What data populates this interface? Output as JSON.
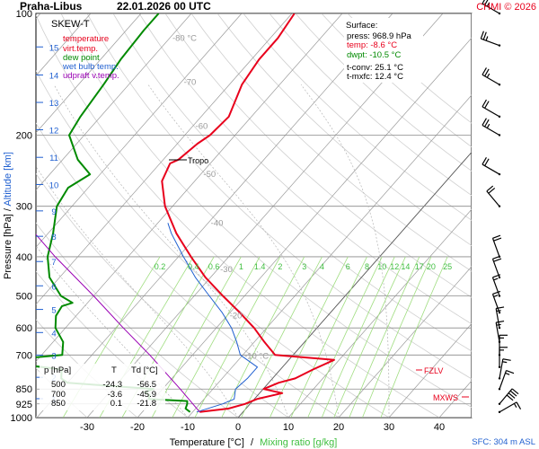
{
  "header": {
    "station": "Praha-Libus",
    "datetime": "22.01.2026 00 UTC",
    "credit": "CHMI © 2026"
  },
  "legend": {
    "title": "SKEW-T",
    "items": [
      {
        "label": "temperature",
        "color": "#e8001c"
      },
      {
        "label": "virt.temp.",
        "color": "#e8001c"
      },
      {
        "label": "dew point",
        "color": "#008a00"
      },
      {
        "label": "wet bulb temp.",
        "color": "#1f5fd0"
      },
      {
        "label": "udpraft v.temp.",
        "color": "#9a00b4"
      }
    ]
  },
  "surface_box": {
    "title": "Surface:",
    "press": "press: 968.9 hPa",
    "temp": "temp: -8.6 °C",
    "dwpt": "dwpt: -10.5 °C",
    "tconv": "t-conv: 25.1 °C",
    "tmxfc": "t-mxfc: 12.4 °C"
  },
  "annotations": {
    "tropo": "Tropo",
    "fzlv": "FZLV",
    "mxws": "MXWS",
    "sfc": "SFC: 304 m ASL"
  },
  "axes": {
    "pressure_label": "Pressure [hPa]",
    "altitude_label": "Altitude [km]",
    "x_label_temp": "Temperature [°C]",
    "x_label_sep": "/",
    "x_label_mix": "Mixing ratio [g/kg]",
    "pressure_ticks": [
      "100",
      "200",
      "300",
      "400",
      "500",
      "600",
      "700",
      "850",
      "925",
      "1000"
    ],
    "temp_ticks": [
      "-30",
      "-20",
      "-10",
      "0",
      "10",
      "20",
      "30",
      "40"
    ],
    "altitude_ticks": [
      "1",
      "2",
      "3",
      "4",
      "5",
      "6",
      "7",
      "8",
      "9",
      "10",
      "11",
      "12",
      "13",
      "14",
      "15"
    ],
    "isotherm_labels": [
      "-80 °C",
      "-70",
      "-60",
      "-50",
      "-40",
      "-30",
      "-20",
      "-10 °C"
    ],
    "mixing_ratio_labels": [
      "0.2",
      "0.4",
      "0.6",
      "1",
      "1.4",
      "2",
      "3",
      "4",
      "6",
      "8",
      "10",
      "12",
      "14",
      "17",
      "20",
      "25"
    ]
  },
  "table": {
    "headers": [
      "p [hPa]",
      "T",
      "Td [°C]"
    ],
    "rows": [
      [
        "500",
        "-24.3",
        "-56.5"
      ],
      [
        "700",
        "-3.6",
        "-45.9"
      ],
      [
        "850",
        "0.1",
        "-21.8"
      ]
    ]
  },
  "chart_data": {
    "type": "line",
    "title": "Praha-Libus 22.01.2026 00 UTC",
    "xlabel": "Temperature [°C] / Mixing ratio [g/kg]",
    "ylabel": "Pressure [hPa] / Altitude [km]",
    "xlim": [
      -38,
      43
    ],
    "ylim": [
      1000,
      100
    ],
    "y_scale": "log",
    "grid": true,
    "series": [
      {
        "name": "temperature",
        "color": "#e8001c",
        "points": [
          [
            969,
            -8.6
          ],
          [
            950,
            -3.5
          ],
          [
            925,
            -1.0
          ],
          [
            900,
            0.5
          ],
          [
            870,
            4.5
          ],
          [
            850,
            0.1
          ],
          [
            820,
            2.0
          ],
          [
            800,
            4.5
          ],
          [
            760,
            6.5
          ],
          [
            720,
            9.0
          ],
          [
            700,
            -3.6
          ],
          [
            650,
            -8.0
          ],
          [
            600,
            -12.5
          ],
          [
            550,
            -18.0
          ],
          [
            500,
            -24.3
          ],
          [
            450,
            -31.0
          ],
          [
            400,
            -37.5
          ],
          [
            350,
            -44.5
          ],
          [
            300,
            -51.5
          ],
          [
            260,
            -56.5
          ],
          [
            235,
            -58.0
          ],
          [
            230,
            -57.0
          ],
          [
            210,
            -56.0
          ],
          [
            200,
            -55.0
          ],
          [
            180,
            -54.5
          ],
          [
            150,
            -57.5
          ],
          [
            130,
            -58.5
          ],
          [
            115,
            -58.5
          ],
          [
            100,
            -59.5
          ]
        ]
      },
      {
        "name": "dew point",
        "color": "#008a00",
        "points": [
          [
            969,
            -10.5
          ],
          [
            950,
            -12.0
          ],
          [
            925,
            -12.5
          ],
          [
            910,
            -13.0
          ],
          [
            900,
            -21.0
          ],
          [
            880,
            -21.5
          ],
          [
            865,
            -23.0
          ],
          [
            850,
            -21.8
          ],
          [
            820,
            -40.0
          ],
          [
            800,
            -42.0
          ],
          [
            760,
            -43.5
          ],
          [
            740,
            -52.0
          ],
          [
            720,
            -56.0
          ],
          [
            700,
            -45.9
          ],
          [
            650,
            -48.0
          ],
          [
            600,
            -52.0
          ],
          [
            560,
            -54.0
          ],
          [
            530,
            -54.5
          ],
          [
            520,
            -53.0
          ],
          [
            500,
            -56.5
          ],
          [
            450,
            -62.0
          ],
          [
            400,
            -66.0
          ],
          [
            350,
            -69.0
          ],
          [
            300,
            -73.0
          ],
          [
            270,
            -74.0
          ],
          [
            250,
            -72.0
          ],
          [
            230,
            -77.0
          ],
          [
            200,
            -83.0
          ],
          [
            180,
            -84.0
          ],
          [
            150,
            -85.0
          ],
          [
            130,
            -86.0
          ],
          [
            110,
            -86.5
          ],
          [
            100,
            -86.5
          ]
        ]
      },
      {
        "name": "wet bulb temp.",
        "color": "#1f5fd0",
        "points": [
          [
            969,
            -9.2
          ],
          [
            925,
            -5.5
          ],
          [
            900,
            -4.0
          ],
          [
            850,
            -5.5
          ],
          [
            800,
            -5.0
          ],
          [
            750,
            -5.0
          ],
          [
            700,
            -10.5
          ],
          [
            650,
            -13.5
          ],
          [
            600,
            -17.0
          ],
          [
            550,
            -21.5
          ],
          [
            500,
            -27.0
          ],
          [
            450,
            -33.0
          ],
          [
            400,
            -39.0
          ],
          [
            350,
            -45.5
          ],
          [
            330,
            -48.0
          ]
        ]
      },
      {
        "name": "udpraft v.temp.",
        "color": "#9a00b4",
        "points": [
          [
            969,
            -8.6
          ],
          [
            850,
            -16.5
          ],
          [
            700,
            -28.5
          ],
          [
            600,
            -38.5
          ],
          [
            500,
            -50.0
          ],
          [
            400,
            -64.5
          ],
          [
            300,
            -82.0
          ],
          [
            250,
            -94.0
          ],
          [
            200,
            -108.0
          ],
          [
            150,
            -127.0
          ],
          [
            120,
            -142.0
          ]
        ]
      }
    ],
    "winds": [
      {
        "p": 100,
        "dir": 300,
        "kt": 25
      },
      {
        "p": 120,
        "dir": 290,
        "kt": 25
      },
      {
        "p": 150,
        "dir": 300,
        "kt": 25
      },
      {
        "p": 180,
        "dir": 300,
        "kt": 20
      },
      {
        "p": 200,
        "dir": 300,
        "kt": 25
      },
      {
        "p": 250,
        "dir": 300,
        "kt": 20
      },
      {
        "p": 300,
        "dir": 320,
        "kt": 20
      },
      {
        "p": 400,
        "dir": 340,
        "kt": 20
      },
      {
        "p": 450,
        "dir": 340,
        "kt": 20
      },
      {
        "p": 500,
        "dir": 340,
        "kt": 15
      },
      {
        "p": 550,
        "dir": 340,
        "kt": 15
      },
      {
        "p": 600,
        "dir": 350,
        "kt": 15
      },
      {
        "p": 650,
        "dir": 350,
        "kt": 15
      },
      {
        "p": 700,
        "dir": 0,
        "kt": 15
      },
      {
        "p": 750,
        "dir": 0,
        "kt": 15
      },
      {
        "p": 800,
        "dir": 10,
        "kt": 15
      },
      {
        "p": 850,
        "dir": 20,
        "kt": 15
      },
      {
        "p": 925,
        "dir": 40,
        "kt": 40
      },
      {
        "p": 969,
        "dir": 60,
        "kt": 15
      }
    ]
  }
}
